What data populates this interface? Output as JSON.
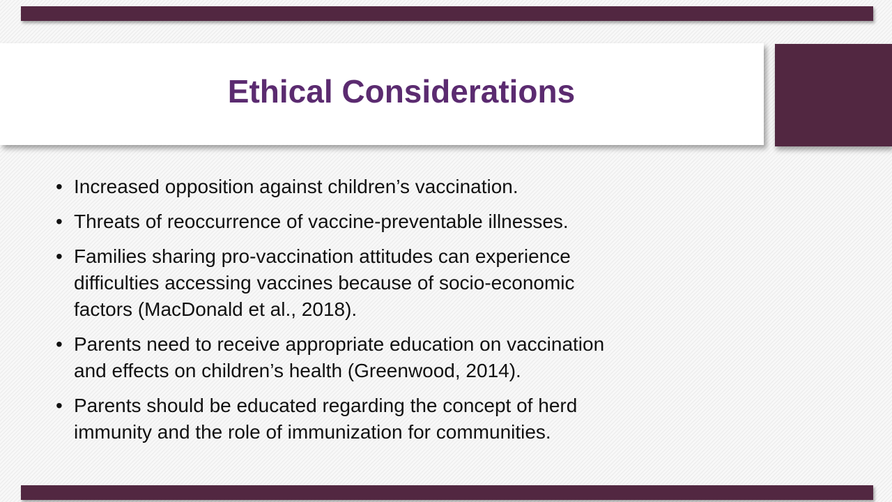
{
  "slide": {
    "title": "Ethical Considerations",
    "bullet_char": "•",
    "bullets": [
      {
        "lines": [
          "Increased opposition against children’s vaccination."
        ]
      },
      {
        "lines": [
          "Threats of reoccurrence of vaccine-preventable illnesses."
        ]
      },
      {
        "lines": [
          "Families sharing pro-vaccination attitudes can experience",
          "difficulties accessing vaccines because of socio-economic",
          "factors (MacDonald et al., 2018)."
        ]
      },
      {
        "lines": [
          "Parents need to receive appropriate education on vaccination",
          "and effects on children’s health (Greenwood, 2014)."
        ]
      },
      {
        "lines": [
          "Parents should be educated regarding the concept of herd",
          "immunity and the role of immunization for communities."
        ]
      }
    ],
    "colors": {
      "accent_plum": "#522741",
      "title_purple": "#5B2B70",
      "body_text": "#111111"
    }
  }
}
